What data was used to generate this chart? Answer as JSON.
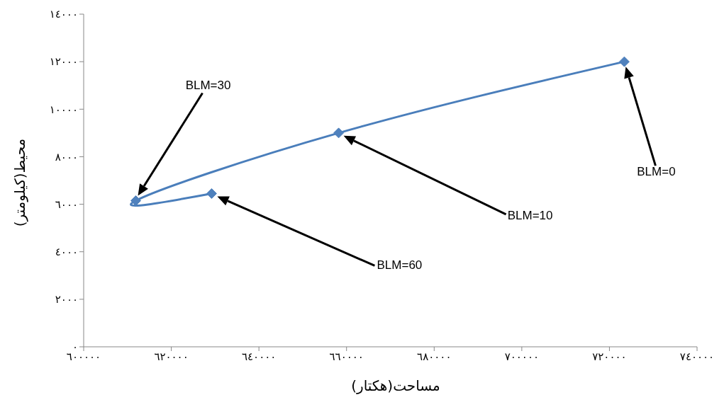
{
  "chart_data": {
    "type": "line",
    "xlabel": "مساحت(هکتار)",
    "ylabel": "محیط(کیلومتر)",
    "x": [
      723400,
      658200,
      611900,
      629200
    ],
    "values": [
      12000,
      9000,
      6150,
      6450
    ],
    "color": "#4a7ebb",
    "marker": "diamond",
    "xlim": [
      600000,
      740000
    ],
    "xticks": [
      {
        "value": 600000,
        "label": "٦٠٠٠٠٠"
      },
      {
        "value": 620000,
        "label": "٦٢٠٠٠٠"
      },
      {
        "value": 640000,
        "label": "٦٤٠٠٠٠"
      },
      {
        "value": 660000,
        "label": "٦٦٠٠٠٠"
      },
      {
        "value": 680000,
        "label": "٦٨٠٠٠٠"
      },
      {
        "value": 700000,
        "label": "٧٠٠٠٠٠"
      },
      {
        "value": 720000,
        "label": "٧٢٠٠٠٠"
      },
      {
        "value": 740000,
        "label": "٧٤٠٠٠٠"
      }
    ],
    "ylim": [
      0,
      14000
    ],
    "yticks": [
      {
        "value": 0,
        "label": "٠"
      },
      {
        "value": 2000,
        "label": "٢٠٠٠"
      },
      {
        "value": 4000,
        "label": "٤٠٠٠"
      },
      {
        "value": 6000,
        "label": "٦٠٠٠"
      },
      {
        "value": 8000,
        "label": "٨٠٠٠"
      },
      {
        "value": 10000,
        "label": "١٠٠٠٠"
      },
      {
        "value": 12000,
        "label": "١٢٠٠٠"
      },
      {
        "value": 14000,
        "label": "١٤٠٠٠"
      }
    ],
    "annotations": [
      "BLM=0",
      "BLM=10",
      "BLM=30",
      "BLM=60"
    ]
  }
}
